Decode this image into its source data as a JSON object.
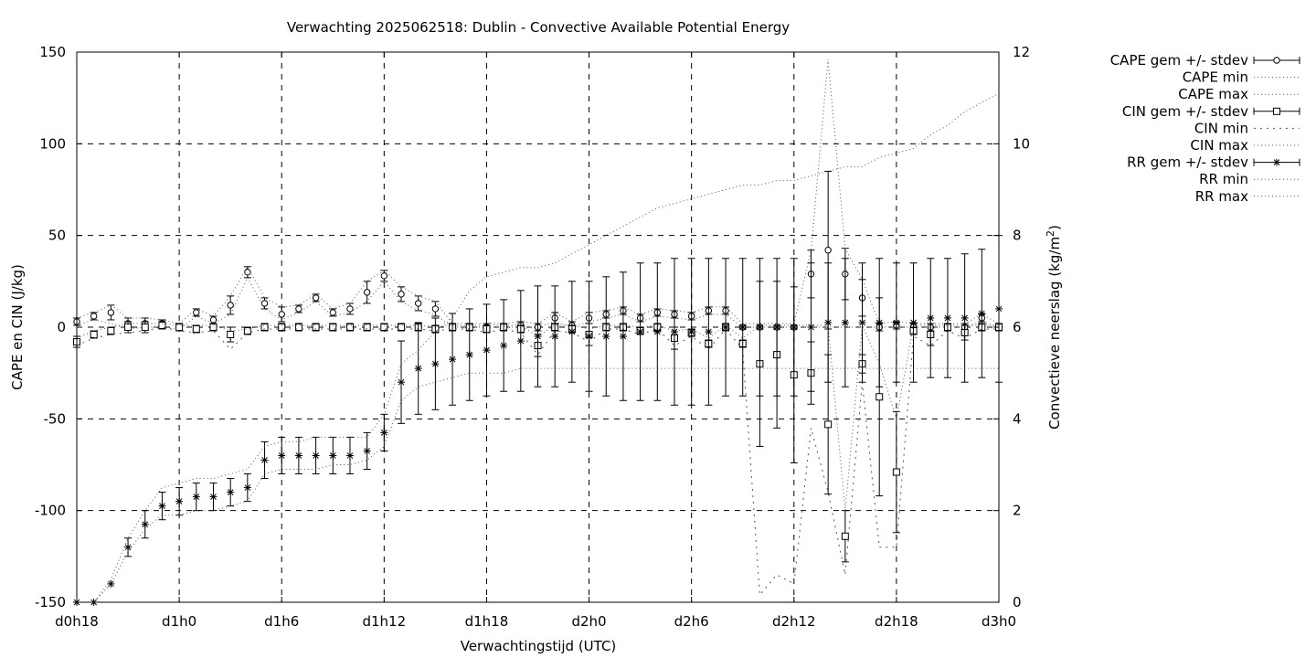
{
  "chart_data": {
    "type": "line",
    "title": "Verwachting 2025062518: Dublin - Convective Available Potential Energy",
    "xlabel": "Verwachtingstijd (UTC)",
    "ylabel": "CAPE en CIN (J/kg)",
    "y2label_main": "Convectieve neerslag (kg/m",
    "y2label_sup": "2",
    "y2label_end": ")",
    "xlim": [
      18,
      72
    ],
    "ylim": [
      -150,
      150
    ],
    "y2lim": [
      0,
      12
    ],
    "grid": true,
    "legend_position": "outside-right",
    "x_ticks": [
      {
        "value": 18,
        "label": "d0h18"
      },
      {
        "value": 24,
        "label": "d1h0"
      },
      {
        "value": 30,
        "label": "d1h6"
      },
      {
        "value": 36,
        "label": "d1h12"
      },
      {
        "value": 42,
        "label": "d1h18"
      },
      {
        "value": 48,
        "label": "d2h0"
      },
      {
        "value": 54,
        "label": "d2h6"
      },
      {
        "value": 60,
        "label": "d2h12"
      },
      {
        "value": 66,
        "label": "d2h18"
      },
      {
        "value": 72,
        "label": "d3h0"
      }
    ],
    "y_ticks": [
      {
        "value": 150,
        "label": "150"
      },
      {
        "value": 100,
        "label": "100"
      },
      {
        "value": 50,
        "label": "50"
      },
      {
        "value": 0,
        "label": "0"
      },
      {
        "value": -50,
        "label": "-50"
      },
      {
        "value": -100,
        "label": "-100"
      },
      {
        "value": -150,
        "label": "-150"
      }
    ],
    "y2_ticks": [
      {
        "value": 12,
        "label": "12"
      },
      {
        "value": 10,
        "label": "10"
      },
      {
        "value": 8,
        "label": "8"
      },
      {
        "value": 6,
        "label": "6"
      },
      {
        "value": 4,
        "label": "4"
      },
      {
        "value": 2,
        "label": "2"
      },
      {
        "value": 0,
        "label": "0"
      }
    ],
    "x": [
      18,
      19,
      20,
      21,
      22,
      23,
      24,
      25,
      26,
      27,
      28,
      29,
      30,
      31,
      32,
      33,
      34,
      35,
      36,
      37,
      38,
      39,
      40,
      41,
      42,
      43,
      44,
      45,
      46,
      47,
      48,
      49,
      50,
      51,
      52,
      53,
      54,
      55,
      56,
      57,
      58,
      59,
      60,
      61,
      62,
      63,
      64,
      65,
      66,
      67,
      68,
      69,
      70,
      71,
      72
    ],
    "series": [
      {
        "name": "CAPE gem +/- stdev",
        "marker": "circle",
        "axis": "y",
        "values": [
          3,
          6,
          8,
          2,
          2,
          2,
          0,
          8,
          4,
          12,
          30,
          13,
          7,
          10,
          16,
          8,
          10,
          19,
          28,
          18,
          13,
          10,
          0,
          0,
          0,
          0,
          1,
          0,
          5,
          1,
          5,
          7,
          9,
          5,
          8,
          7,
          6,
          9,
          9,
          0,
          0,
          0,
          0,
          29,
          42,
          29,
          16,
          0,
          1,
          0,
          0,
          0,
          0,
          5,
          0
        ],
        "errors": [
          2,
          2,
          4,
          3,
          3,
          2,
          2,
          2,
          2,
          5,
          3,
          3,
          4,
          2,
          2,
          2,
          3,
          6,
          3,
          4,
          4,
          4,
          2,
          2,
          2,
          2,
          2,
          2,
          3,
          2,
          3,
          2,
          2,
          2,
          2,
          2,
          2,
          2,
          2,
          1,
          1,
          1,
          1,
          13,
          43,
          14,
          10,
          2,
          2,
          2,
          2,
          2,
          2,
          2,
          2
        ]
      },
      {
        "name": "CAPE min",
        "line": "dotted",
        "axis": "y",
        "values": [
          1,
          4,
          2,
          -1,
          0,
          0,
          -1,
          6,
          2,
          7,
          27,
          10,
          4,
          8,
          14,
          6,
          8,
          14,
          25,
          14,
          9,
          7,
          0,
          0,
          0,
          0,
          0,
          0,
          3,
          0,
          3,
          5,
          7,
          3,
          6,
          5,
          4,
          7,
          7,
          0,
          0,
          0,
          0,
          0,
          0,
          0,
          0,
          0,
          0,
          0,
          0,
          0,
          0,
          3,
          0
        ]
      },
      {
        "name": "CAPE max",
        "line": "dotted",
        "axis": "y",
        "values": [
          5,
          8,
          12,
          5,
          5,
          4,
          2,
          10,
          6,
          17,
          33,
          16,
          11,
          12,
          18,
          10,
          13,
          25,
          31,
          22,
          17,
          14,
          2,
          2,
          2,
          2,
          3,
          2,
          8,
          3,
          8,
          9,
          11,
          7,
          10,
          9,
          8,
          11,
          11,
          2,
          2,
          2,
          2,
          42,
          146,
          43,
          26,
          2,
          3,
          2,
          2,
          2,
          2,
          7,
          2
        ]
      },
      {
        "name": "CIN gem +/- stdev",
        "marker": "square",
        "axis": "y",
        "values": [
          -8,
          -4,
          -2,
          0,
          0,
          1,
          0,
          -1,
          0,
          -4,
          -2,
          0,
          0,
          0,
          0,
          0,
          0,
          0,
          0,
          0,
          0,
          -1,
          0,
          0,
          -1,
          0,
          -1,
          -10,
          0,
          -1,
          -4,
          0,
          0,
          -2,
          0,
          -6,
          -3,
          -9,
          0,
          -9,
          -20,
          -15,
          -26,
          -25,
          -53,
          -114,
          -20,
          -38,
          -79,
          -2,
          -4,
          0,
          -3,
          0,
          0
        ],
        "errors": [
          3,
          2,
          2,
          3,
          3,
          2,
          2,
          2,
          2,
          4,
          2,
          2,
          2,
          2,
          2,
          2,
          2,
          2,
          2,
          2,
          2,
          2,
          2,
          2,
          2,
          2,
          2,
          6,
          2,
          2,
          6,
          2,
          2,
          2,
          2,
          6,
          2,
          2,
          2,
          2,
          45,
          40,
          48,
          17,
          38,
          14,
          5,
          54,
          33,
          2,
          6,
          2,
          4,
          2,
          2
        ]
      },
      {
        "name": "CIN min",
        "line": "dotted",
        "axis": "y",
        "values": [
          -10,
          -6,
          -4,
          -3,
          -2,
          0,
          -2,
          -3,
          -2,
          -12,
          -3,
          -1,
          -1,
          -1,
          -1,
          -1,
          -1,
          -1,
          -1,
          -1,
          -1,
          -2,
          -1,
          -1,
          -3,
          -1,
          -3,
          -15,
          -2,
          -3,
          -8,
          -1,
          -1,
          -4,
          -1,
          -10,
          -5,
          -12,
          -1,
          -12,
          -146,
          -135,
          -140,
          -55,
          -90,
          -135,
          -30,
          -120,
          -120,
          -5,
          -10,
          -2,
          -6,
          -1,
          -1
        ]
      },
      {
        "name": "CIN max",
        "line": "dotted",
        "axis": "y",
        "values": [
          -6,
          -2,
          0,
          2,
          2,
          2,
          1,
          1,
          1,
          -2,
          -1,
          1,
          1,
          1,
          1,
          1,
          1,
          1,
          1,
          1,
          1,
          0,
          1,
          1,
          1,
          1,
          1,
          -5,
          1,
          1,
          -1,
          1,
          1,
          0,
          1,
          -2,
          -1,
          -6,
          1,
          -6,
          1,
          1,
          1,
          1,
          1,
          -100,
          1,
          -20,
          -50,
          1,
          1,
          1,
          1,
          1,
          1
        ]
      },
      {
        "name": "RR gem +/- stdev",
        "marker": "star",
        "axis": "y2",
        "values": [
          0,
          0,
          0.4,
          1.2,
          1.7,
          2.1,
          2.2,
          2.3,
          2.3,
          2.4,
          2.5,
          3.1,
          3.2,
          3.2,
          3.2,
          3.2,
          3.2,
          3.3,
          3.7,
          4.8,
          5.1,
          5.2,
          5.3,
          5.4,
          5.5,
          5.6,
          5.7,
          5.8,
          5.8,
          5.9,
          5.8,
          5.8,
          5.8,
          5.9,
          5.9,
          5.9,
          5.9,
          5.9,
          6,
          6,
          6,
          6,
          6,
          6,
          6.1,
          6.1,
          6.1,
          6.1,
          6.1,
          6.1,
          6.2,
          6.2,
          6.2,
          6.3,
          6.4
        ],
        "errors": [
          0,
          0,
          0,
          0.2,
          0.3,
          0.3,
          0.3,
          0.3,
          0.3,
          0.3,
          0.3,
          0.4,
          0.4,
          0.4,
          0.4,
          0.4,
          0.4,
          0.4,
          0.4,
          0.9,
          1,
          1,
          1,
          1,
          1,
          1,
          1.1,
          1.1,
          1.1,
          1.1,
          1.2,
          1.3,
          1.4,
          1.5,
          1.5,
          1.6,
          1.6,
          1.6,
          1.5,
          1.5,
          1.5,
          1.5,
          1.5,
          1.4,
          1.3,
          1.4,
          1.3,
          1.4,
          1.3,
          1.3,
          1.3,
          1.3,
          1.4,
          1.4,
          1.6
        ]
      },
      {
        "name": "RR min",
        "line": "dotted",
        "axis": "y2",
        "values": [
          0,
          0,
          0.4,
          1.1,
          1.6,
          1.9,
          1.9,
          2,
          2,
          2.1,
          2.2,
          2.8,
          2.9,
          2.9,
          2.9,
          3,
          3,
          3.1,
          3.4,
          4.4,
          4.7,
          4.8,
          4.9,
          5,
          5,
          5,
          5.1,
          5.1,
          5.1,
          5.1,
          5.1,
          5.1,
          5.1,
          5.1,
          5.1,
          5.1,
          5.1,
          5.1,
          5.1,
          5.1,
          5.1,
          5.1,
          5.1,
          5.1,
          5.1,
          5.1,
          5.1,
          5.1,
          5.1,
          5.1,
          5.1,
          5.1,
          5.1,
          5.1,
          5.1
        ]
      },
      {
        "name": "RR max",
        "line": "dotted",
        "axis": "y2",
        "values": [
          0,
          0,
          0.5,
          1.4,
          2,
          2.5,
          2.6,
          2.7,
          2.7,
          2.8,
          2.9,
          3.4,
          3.5,
          3.5,
          3.6,
          3.6,
          3.6,
          3.6,
          4.1,
          5.2,
          5.5,
          5.9,
          6.2,
          6.8,
          7.1,
          7.2,
          7.3,
          7.3,
          7.4,
          7.6,
          7.8,
          8,
          8.2,
          8.4,
          8.6,
          8.7,
          8.8,
          8.9,
          9,
          9.1,
          9.1,
          9.2,
          9.2,
          9.3,
          9.4,
          9.5,
          9.5,
          9.7,
          9.8,
          9.9,
          10.2,
          10.4,
          10.7,
          10.9,
          11.1
        ]
      }
    ]
  }
}
